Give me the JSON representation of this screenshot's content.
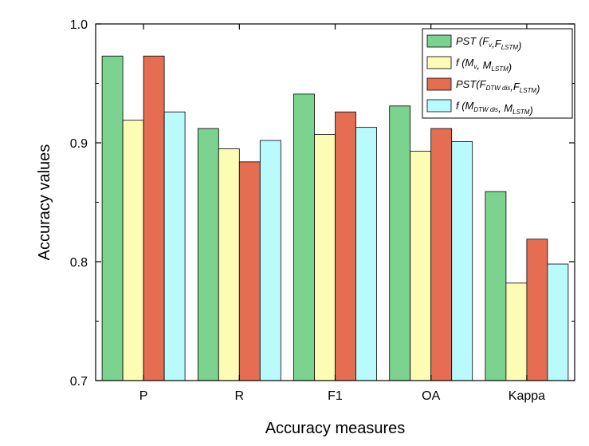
{
  "chart_data": {
    "type": "bar",
    "title": "",
    "xlabel": "Accuracy measures",
    "ylabel": "Accuracy values",
    "ylim": [
      0.7,
      1.0
    ],
    "yticks": [
      0.7,
      0.8,
      0.9,
      1.0
    ],
    "ytick_labels": [
      "0.7",
      "0.8",
      "0.9",
      "1.0"
    ],
    "categories": [
      "P",
      "R",
      "F1",
      "OA",
      "Kappa"
    ],
    "legend_position": "top-right",
    "series": [
      {
        "name": "PST (Fv,FLSTM)",
        "label_parts": [
          {
            "t": "PST (F"
          },
          {
            "t": "v",
            "sub": true
          },
          {
            "t": ",F"
          },
          {
            "t": "LSTM",
            "sub": true
          },
          {
            "t": ")"
          }
        ],
        "color": "#7bd38f",
        "values": [
          0.973,
          0.912,
          0.941,
          0.931,
          0.859
        ]
      },
      {
        "name": "f (Mv, MLSTM)",
        "label_parts": [
          {
            "t": "f (M"
          },
          {
            "t": "v",
            "sub": true
          },
          {
            "t": ", M"
          },
          {
            "t": "LSTM",
            "sub": true
          },
          {
            "t": ")"
          }
        ],
        "color": "#fdfcb4",
        "values": [
          0.919,
          0.895,
          0.907,
          0.893,
          0.782
        ]
      },
      {
        "name": "PST(FDTW dis,FLSTM)",
        "label_parts": [
          {
            "t": "PST(F"
          },
          {
            "t": "DTW dis",
            "sub": true
          },
          {
            "t": ",F"
          },
          {
            "t": "LSTM",
            "sub": true
          },
          {
            "t": ")"
          }
        ],
        "color": "#e56e52",
        "values": [
          0.973,
          0.884,
          0.926,
          0.912,
          0.819
        ]
      },
      {
        "name": "f (MDTW dis, MLSTM)",
        "label_parts": [
          {
            "t": "f (M"
          },
          {
            "t": "DTW dis",
            "sub": true
          },
          {
            "t": ", M"
          },
          {
            "t": "LSTM",
            "sub": true
          },
          {
            "t": ")"
          }
        ],
        "color": "#b9fafd",
        "values": [
          0.926,
          0.902,
          0.913,
          0.901,
          0.798
        ]
      }
    ]
  }
}
